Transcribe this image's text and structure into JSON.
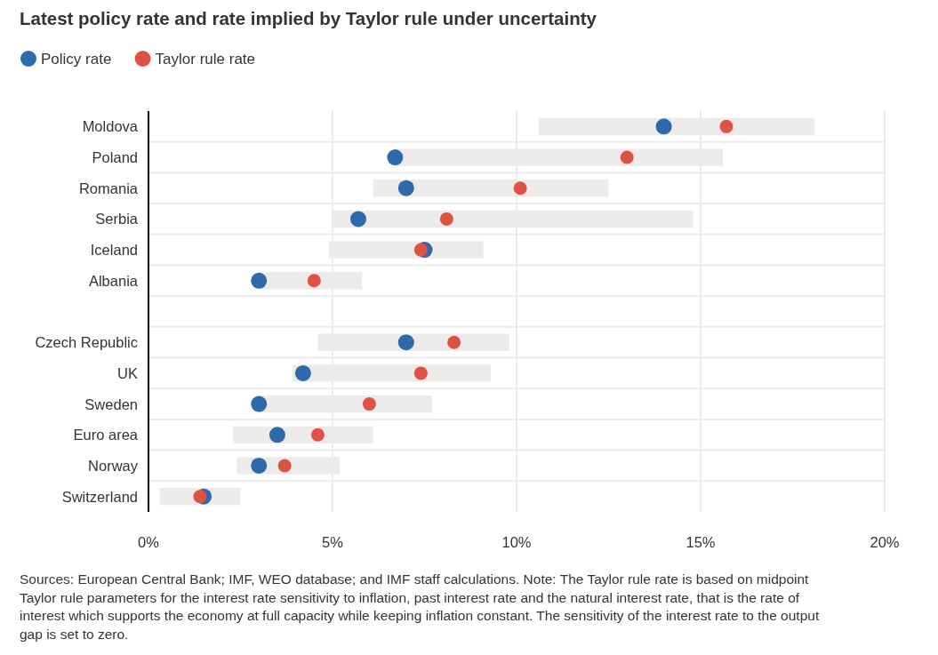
{
  "chart_data": {
    "type": "bar",
    "orientation": "horizontal",
    "title": "Latest policy rate and rate implied by Taylor rule under uncertainty",
    "categories": [
      "Moldova",
      "Poland",
      "Romania",
      "Serbia",
      "Iceland",
      "Albania",
      null,
      "Czech Republic",
      "UK",
      "Sweden",
      "Euro area",
      "Norway",
      "Switzerland"
    ],
    "series": [
      {
        "color": "#ecebe9",
        "base": [
          10.6,
          6.7,
          6.1,
          5.0,
          4.9,
          3.0,
          null,
          4.6,
          3.9,
          3.0,
          2.3,
          2.4,
          0.3
        ],
        "values": [
          7.5,
          8.9,
          6.4,
          9.8,
          4.2,
          2.8,
          null,
          5.2,
          5.4,
          4.7,
          3.8,
          2.8,
          2.2
        ]
      },
      {
        "type": "scatter",
        "name": "Policy rate",
        "color": "#2e6aa9",
        "values": [
          14.0,
          6.7,
          7.0,
          5.7,
          7.5,
          3.0,
          null,
          7.0,
          4.2,
          3.0,
          3.5,
          3.0,
          1.5
        ]
      },
      {
        "type": "scatter",
        "name": "Taylor rule rate",
        "color": "#e05145",
        "values": [
          15.7,
          13.0,
          10.1,
          8.1,
          7.4,
          4.5,
          null,
          8.3,
          7.4,
          6.0,
          4.6,
          3.7,
          1.4
        ]
      }
    ],
    "xlim": [
      0,
      20
    ],
    "xticks": [
      {
        "value": 0,
        "label": "0%"
      },
      {
        "value": 5,
        "label": "5%"
      },
      {
        "value": 10,
        "label": "10%"
      },
      {
        "value": 15,
        "label": "15%"
      },
      {
        "value": 20,
        "label": "20%"
      }
    ],
    "grid": true,
    "legend": "top left",
    "marker": "circle",
    "annotations": [
      "Sources: European Central Bank; IMF, WEO database; and IMF staff calculations. Note: The Taylor rule rate is based on midpoint Taylor rule parameters for the interest rate sensitivity to inflation, past interest rate and the natural interest rate, that is the rate of interest which supports the economy at full capacity while keeping inflation constant. The sensitivity of the interest rate to the output gap is set to zero."
    ]
  }
}
